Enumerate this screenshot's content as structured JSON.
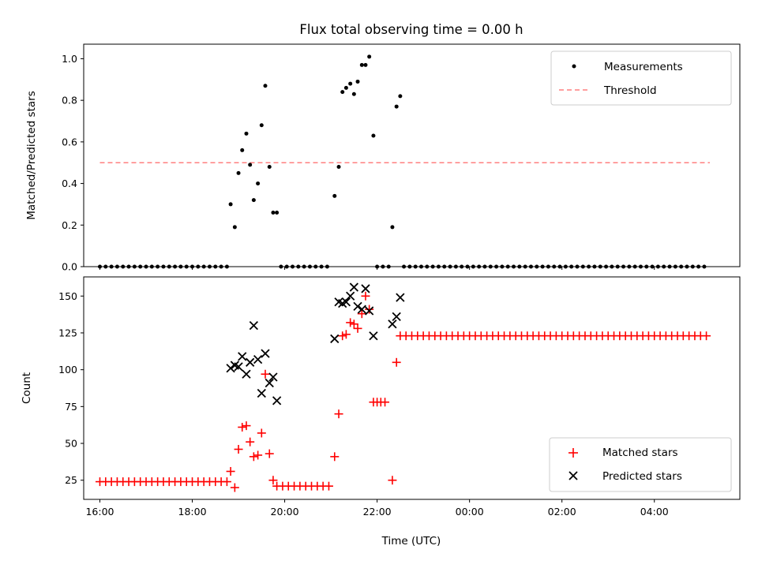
{
  "chart_data": [
    {
      "type": "scatter",
      "title": "Flux total observing time = 0.00 h",
      "ylabel": "Matched/Predicted stars",
      "ylim": [
        0,
        1.07
      ],
      "yticks": [
        "0.0",
        "0.2",
        "0.4",
        "0.6",
        "0.8",
        "1.0"
      ],
      "ytick_values": [
        0,
        0.2,
        0.4,
        0.6,
        0.8,
        1.0
      ],
      "legend": {
        "position": "upper right",
        "entries": [
          "Measurements",
          "Threshold"
        ]
      },
      "threshold": {
        "name": "Threshold",
        "value": 0.5,
        "x_range_hours": [
          16.0,
          29.2
        ],
        "color": "#ff7f7f"
      },
      "series": [
        {
          "name": "Measurements",
          "color": "#000000",
          "points": [
            [
              18.83,
              0.3
            ],
            [
              18.92,
              0.19
            ],
            [
              19.0,
              0.45
            ],
            [
              19.08,
              0.56
            ],
            [
              19.17,
              0.64
            ],
            [
              19.25,
              0.49
            ],
            [
              19.33,
              0.32
            ],
            [
              19.42,
              0.4
            ],
            [
              19.5,
              0.68
            ],
            [
              19.58,
              0.87
            ],
            [
              19.67,
              0.48
            ],
            [
              19.75,
              0.26
            ],
            [
              19.83,
              0.26
            ],
            [
              21.08,
              0.34
            ],
            [
              21.17,
              0.48
            ],
            [
              21.25,
              0.84
            ],
            [
              21.33,
              0.86
            ],
            [
              21.42,
              0.88
            ],
            [
              21.5,
              0.83
            ],
            [
              21.58,
              0.89
            ],
            [
              21.67,
              0.97
            ],
            [
              21.75,
              0.97
            ],
            [
              21.83,
              1.01
            ],
            [
              21.92,
              0.63
            ],
            [
              22.33,
              0.19
            ],
            [
              22.42,
              0.77
            ],
            [
              22.5,
              0.82
            ]
          ],
          "zero_ranges": [
            [
              16.0,
              18.8,
              0.125
            ],
            [
              19.92,
              21.0,
              0.125
            ],
            [
              22.0,
              22.25,
              0.125
            ],
            [
              22.58,
              29.2,
              0.125
            ]
          ]
        }
      ]
    },
    {
      "type": "scatter",
      "ylabel": "Count",
      "xlabel": "Time (UTC)",
      "ylim": [
        12,
        163
      ],
      "yticks": [
        "25",
        "50",
        "75",
        "100",
        "125",
        "150"
      ],
      "ytick_values": [
        25,
        50,
        75,
        100,
        125,
        150
      ],
      "xlim_hours": [
        15.65,
        29.85
      ],
      "xticks": [
        "16:00",
        "18:00",
        "20:00",
        "22:00",
        "00:00",
        "02:00",
        "04:00"
      ],
      "xtick_hours": [
        16,
        18,
        20,
        22,
        24,
        26,
        28
      ],
      "legend": {
        "position": "lower right",
        "entries": [
          "Matched stars",
          "Predicted stars"
        ]
      },
      "series": [
        {
          "name": "Matched stars",
          "marker": "+",
          "color": "#ff0000",
          "points": [
            [
              18.83,
              31
            ],
            [
              18.92,
              20
            ],
            [
              19.0,
              46
            ],
            [
              19.08,
              61
            ],
            [
              19.17,
              62
            ],
            [
              19.25,
              51
            ],
            [
              19.33,
              41
            ],
            [
              19.42,
              42
            ],
            [
              19.5,
              57
            ],
            [
              19.58,
              97
            ],
            [
              19.67,
              43
            ],
            [
              19.75,
              25
            ],
            [
              21.08,
              41
            ],
            [
              21.17,
              70
            ],
            [
              21.25,
              123
            ],
            [
              21.33,
              124
            ],
            [
              21.42,
              132
            ],
            [
              21.5,
              131
            ],
            [
              21.58,
              128
            ],
            [
              21.67,
              138
            ],
            [
              21.75,
              150
            ],
            [
              21.83,
              141
            ],
            [
              21.92,
              78
            ],
            [
              22.0,
              78
            ],
            [
              22.08,
              78
            ],
            [
              22.17,
              78
            ],
            [
              22.33,
              25
            ],
            [
              22.42,
              105
            ]
          ],
          "constant_ranges": [
            [
              16.0,
              18.75,
              24,
              0.125
            ],
            [
              19.83,
              21.0,
              21,
              0.125
            ],
            [
              22.5,
              29.2,
              123,
              0.125
            ]
          ]
        },
        {
          "name": "Predicted stars",
          "marker": "x",
          "color": "#000000",
          "points": [
            [
              18.83,
              101
            ],
            [
              18.92,
              103
            ],
            [
              19.0,
              102
            ],
            [
              19.08,
              109
            ],
            [
              19.17,
              97
            ],
            [
              19.25,
              105
            ],
            [
              19.33,
              130
            ],
            [
              19.42,
              107
            ],
            [
              19.5,
              84
            ],
            [
              19.58,
              111
            ],
            [
              19.67,
              91
            ],
            [
              19.75,
              95
            ],
            [
              19.83,
              79
            ],
            [
              21.08,
              121
            ],
            [
              21.17,
              146
            ],
            [
              21.25,
              145
            ],
            [
              21.33,
              146
            ],
            [
              21.42,
              150
            ],
            [
              21.5,
              156
            ],
            [
              21.58,
              143
            ],
            [
              21.67,
              141
            ],
            [
              21.75,
              155
            ],
            [
              21.83,
              140
            ],
            [
              21.92,
              123
            ],
            [
              22.33,
              131
            ],
            [
              22.42,
              136
            ],
            [
              22.5,
              149
            ]
          ]
        }
      ]
    }
  ]
}
